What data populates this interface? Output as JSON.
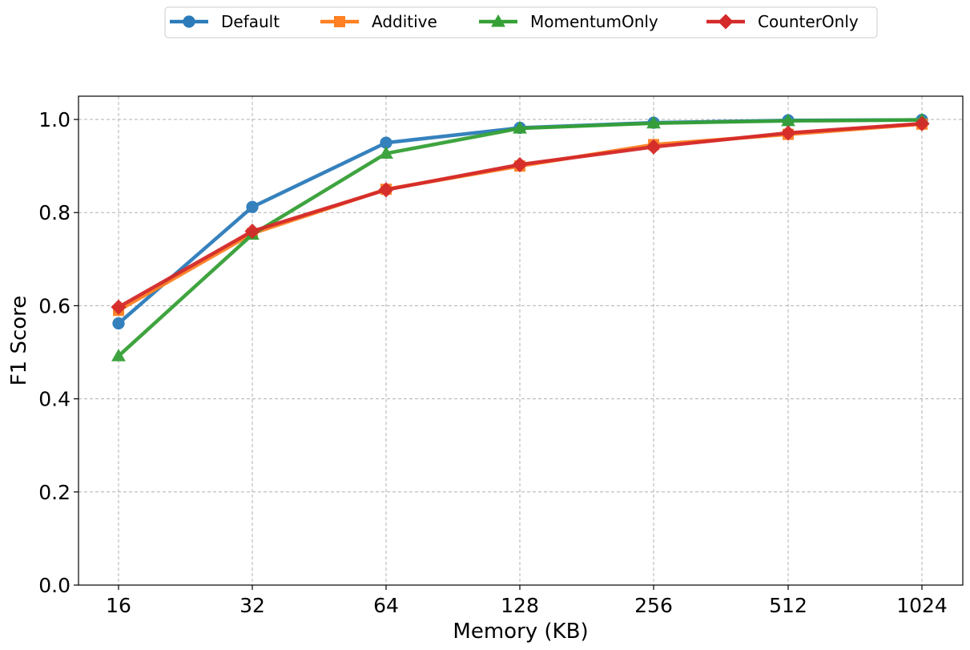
{
  "chart_data": {
    "type": "line",
    "xlabel": "Memory (KB)",
    "ylabel": "F1 Score",
    "categories": [
      "16",
      "32",
      "64",
      "128",
      "256",
      "512",
      "1024"
    ],
    "ylim": [
      0,
      1.05
    ],
    "yticks": [
      "0.0",
      "0.2",
      "0.4",
      "0.6",
      "0.8",
      "1.0"
    ],
    "grid": true,
    "legend_position": "top-center",
    "series": [
      {
        "name": "Default",
        "color": "#2b7bba",
        "marker": "circle",
        "values": [
          0.562,
          0.812,
          0.95,
          0.982,
          0.993,
          0.998,
          0.999
        ]
      },
      {
        "name": "Additive",
        "color": "#ff8022",
        "marker": "square",
        "values": [
          0.59,
          0.755,
          0.85,
          0.9,
          0.946,
          0.968,
          0.99
        ]
      },
      {
        "name": "MomentumOnly",
        "color": "#35a035",
        "marker": "triangle",
        "values": [
          0.492,
          0.753,
          0.927,
          0.981,
          0.992,
          0.997,
          0.999
        ]
      },
      {
        "name": "CounterOnly",
        "color": "#d42a2a",
        "marker": "diamond",
        "values": [
          0.597,
          0.76,
          0.849,
          0.903,
          0.941,
          0.971,
          0.991
        ]
      }
    ]
  }
}
